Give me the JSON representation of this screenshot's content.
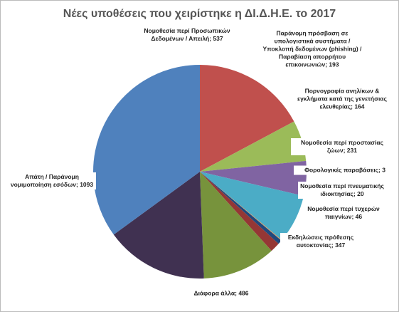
{
  "chart_data": {
    "type": "pie",
    "title": "Νέες υποθέσεις που χειρίστηκε η ΔΙ.Δ.Η.Ε. το 2017",
    "label_separator": "; ",
    "categories": [
      "Νομοθεσία περί Προσωπικών Δεδομένων / Απειλή",
      "Παράνομη πρόσβαση σε υπολογιστικά συστήματα / Υποκλοπή δεδομένων (phishing) / Παραβίαση απορρήτου επικοινωνιών",
      "Πορνογραφία ανηλίκων & εγκλήματα κατά της γενετήσιας ελευθερίας",
      "Νομοθεσία περί προστασίας ζώων",
      "Φορολογικές παραβάσεις",
      "Νομοθεσία περί πνευματικής ιδιοκτησίας",
      "Νομοθεσία περί τυχερών παιγνίων",
      "Εκδηλώσεις πρόθεσης αυτοκτονίας",
      "Διάφορα άλλα",
      "Απάτη / Παράνομη νομιμοποίηση εσόδων"
    ],
    "values": [
      537,
      193,
      164,
      231,
      3,
      20,
      46,
      347,
      486,
      1093
    ],
    "colors": [
      "#c0504d",
      "#9bbb59",
      "#8064a2",
      "#4bacc6",
      "#f79646",
      "#1f497d",
      "#953735",
      "#77933c",
      "#403151",
      "#4f81bd"
    ]
  }
}
